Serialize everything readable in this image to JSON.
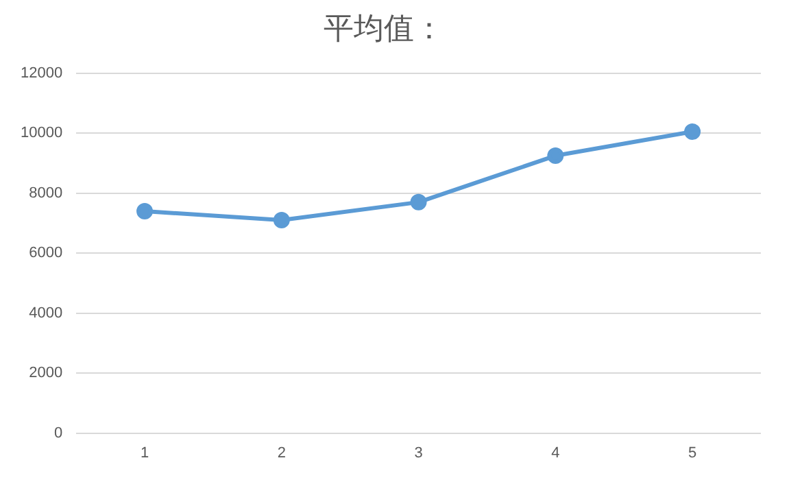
{
  "chart_data": {
    "type": "line",
    "title": "平均值：",
    "categories": [
      "1",
      "2",
      "3",
      "4",
      "5"
    ],
    "series": [
      {
        "color": "#5b9bd5",
        "values": [
          7400,
          7100,
          7700,
          9250,
          10050
        ]
      }
    ],
    "ylim": [
      0,
      12000
    ],
    "yticks": [
      0,
      2000,
      4000,
      6000,
      8000,
      10000,
      12000
    ],
    "grid": "y",
    "legend": false,
    "marker": "circle",
    "line_style": "solid"
  }
}
